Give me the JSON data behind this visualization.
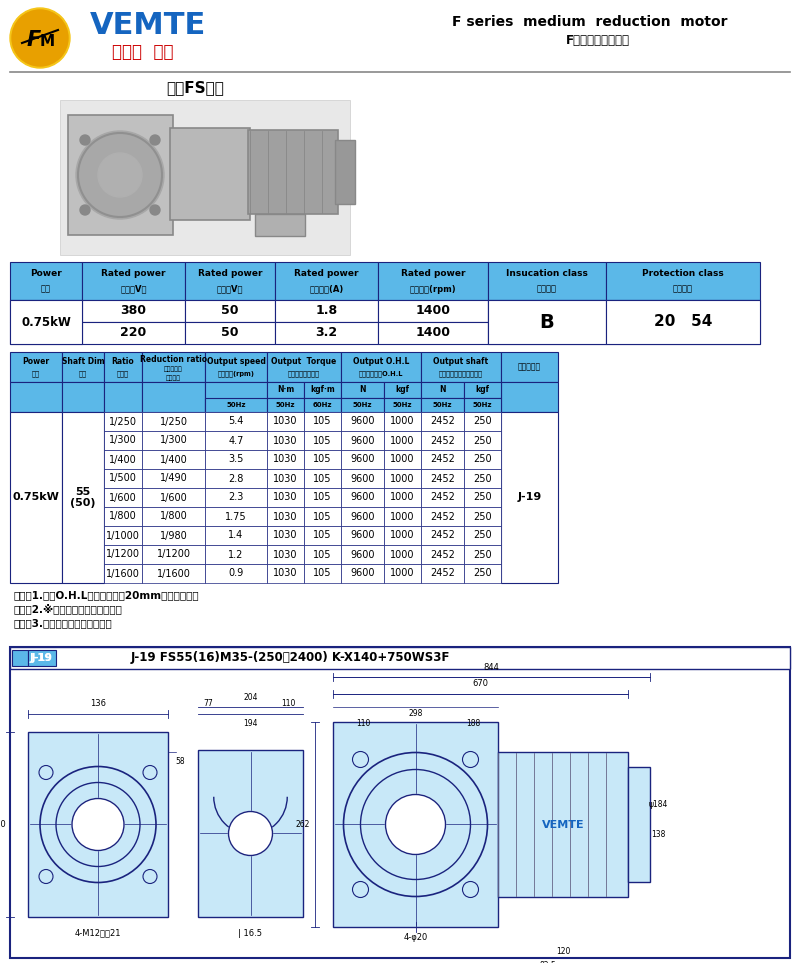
{
  "bg_color": "#FFFFFF",
  "hdr_color": "#5BB8E8",
  "navy": "#1A237E",
  "black": "#000000",
  "light_blue": "#C8E8F8",
  "title_en": "F series  medium  reduction  motor",
  "title_cn": "F系列中型減速電機",
  "subtitle": "中空FS系列",
  "brand_top": "VEMTE",
  "brand_sub": "減速机  电机",
  "t1_headers": [
    "Power\n功率",
    "Rated power\n電壓（V）",
    "Rated power\n頻率（V）",
    "Rated power\n額定電流(A)",
    "Rated power\n額定轉速(rpm)",
    "Insucation class\n絕縣等級",
    "Protection class\n防護等級"
  ],
  "t1_cw": [
    72,
    103,
    90,
    103,
    110,
    118,
    154
  ],
  "t1_row1": [
    "0.75kW",
    "380",
    "50",
    "1.8",
    "1400",
    "B",
    "20  54"
  ],
  "t1_row2": [
    "",
    "220",
    "50",
    "3.2",
    "1400",
    "",
    ""
  ],
  "t2_cw": [
    52,
    42,
    38,
    63,
    62,
    37,
    37,
    43,
    37,
    43,
    37,
    57
  ],
  "t2_h1": [
    "Power\n功率",
    "Shaft Dim\n軸徑",
    "Ratio\n減速比",
    "Reduction ratio\n實際減速比\n（分數）",
    "Output speed\n輸出轉數(rpm)",
    "Output  Torque\n輸出扰矩許可扰力",
    null,
    "Output O.H.L\n輸出軸徑許可O.H.L",
    null,
    "Output shaft\n輸出軸徑許可軸向力負荷",
    null,
    "外形尺寸圖"
  ],
  "t2_h2": [
    "",
    "",
    "",
    "",
    "",
    "N·m",
    "kgf·m",
    "N",
    "kgf",
    "N",
    "kgf",
    ""
  ],
  "t2_h3": [
    "",
    "",
    "",
    "",
    "50Hz",
    "50Hz",
    "60Hz",
    "50Hz",
    "50Hz",
    "50Hz",
    "50Hz",
    ""
  ],
  "data_rows": [
    [
      "1/250",
      "1/250",
      "5.4",
      "1030",
      "105",
      "9600",
      "1000",
      "2452",
      "250"
    ],
    [
      "1/300",
      "1/300",
      "4.7",
      "1030",
      "105",
      "9600",
      "1000",
      "2452",
      "250"
    ],
    [
      "1/400",
      "1/400",
      "3.5",
      "1030",
      "105",
      "9600",
      "1000",
      "2452",
      "250"
    ],
    [
      "1/500",
      "1/490",
      "2.8",
      "1030",
      "105",
      "9600",
      "1000",
      "2452",
      "250"
    ],
    [
      "1/600",
      "1/600",
      "2.3",
      "1030",
      "105",
      "9600",
      "1000",
      "2452",
      "250"
    ],
    [
      "1/800",
      "1/800",
      "1.75",
      "1030",
      "105",
      "9600",
      "1000",
      "2452",
      "250"
    ],
    [
      "1/1000",
      "1/980",
      "1.4",
      "1030",
      "105",
      "9600",
      "1000",
      "2452",
      "250"
    ],
    [
      "1/1200",
      "1/1200",
      "1.2",
      "1030",
      "105",
      "9600",
      "1000",
      "2452",
      "250"
    ],
    [
      "1/1600",
      "1/1600",
      "0.9",
      "1030",
      "105",
      "9600",
      "1000",
      "2452",
      "250"
    ]
  ],
  "power_lbl": "0.75kW",
  "shaft_lbl": "55\n(50)",
  "dim_lbl": "J-19",
  "notes": [
    "（注）1.容許O.H.L為離出軸端面20mm位置的數値。",
    "　　　2.※標記高轉矩力矩保護型。",
    "　　　3.括號（）算實心軸軸徑。"
  ],
  "drawing_title": "J-19 FS55(16)M35-(250～2400) K-X140+750WS3F"
}
